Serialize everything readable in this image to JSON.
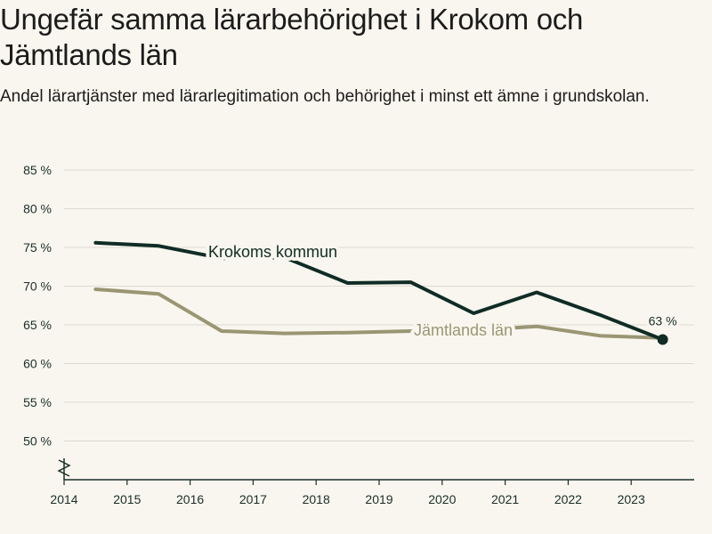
{
  "title": "Ungefär samma lärarbehörighet i Krokom och Jämtlands län",
  "subtitle": "Andel lärartjänster med lärarlegitimation och behörighet i minst ett ämne i grundskolan.",
  "colors": {
    "background": "#f8f6ee",
    "krokom": "#0f2c25",
    "jamtland": "#9a9673",
    "grid": "#dcdad2",
    "axis": "#1a2e2a"
  },
  "chart_data": {
    "type": "line",
    "x": [
      2014.5,
      2015.5,
      2016.5,
      2017.5,
      2018.5,
      2019.5,
      2020.5,
      2021.5,
      2022.5,
      2023.5
    ],
    "x_ticks": [
      "2014",
      "2015",
      "2016",
      "2017",
      "2018",
      "2019",
      "2020",
      "2021",
      "2022",
      "2023"
    ],
    "x_tick_values": [
      2014,
      2015,
      2016,
      2017,
      2018,
      2019,
      2020,
      2021,
      2022,
      2023
    ],
    "xlim": [
      2014,
      2024
    ],
    "y_ticks": [
      "50 %",
      "55 %",
      "60 %",
      "65 %",
      "70 %",
      "75 %",
      "80 %",
      "85 %"
    ],
    "y_tick_values": [
      50,
      55,
      60,
      65,
      70,
      75,
      80,
      85
    ],
    "ylim": [
      45,
      85
    ],
    "series": [
      {
        "name": "Krokoms kommun",
        "values": [
          75.6,
          75.2,
          73.6,
          73.7,
          70.4,
          70.5,
          66.5,
          69.2,
          66.3,
          63.1
        ]
      },
      {
        "name": "Jämtlands län",
        "values": [
          69.6,
          69.0,
          64.2,
          63.9,
          64.0,
          64.2,
          64.3,
          64.8,
          63.6,
          63.3
        ]
      }
    ],
    "end_label": "63 %",
    "axis_break": true
  }
}
